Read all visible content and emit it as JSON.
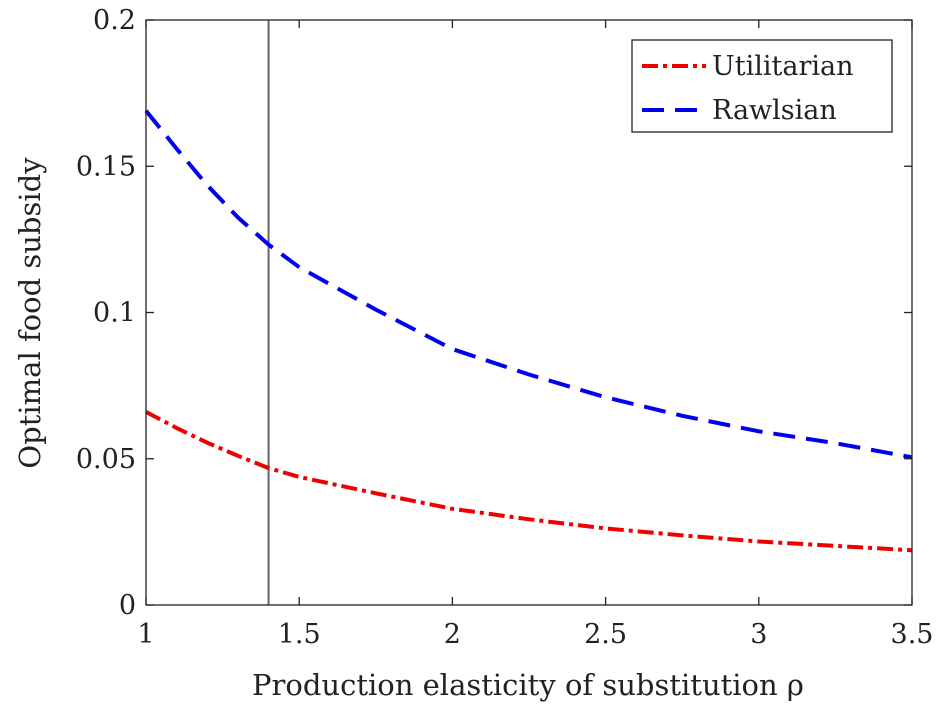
{
  "chart_data": {
    "type": "line",
    "title": "",
    "xlabel": "Production elasticity of substitution ρ",
    "ylabel": "Optimal food subsidy",
    "xlim": [
      1,
      3.5
    ],
    "ylim": [
      0,
      0.2
    ],
    "x_ticks": [
      "1",
      "1.5",
      "2",
      "2.5",
      "3",
      "3.5"
    ],
    "y_ticks": [
      "0",
      "0.05",
      "0.1",
      "0.15",
      "0.2"
    ],
    "x_tick_values": [
      1,
      1.5,
      2,
      2.5,
      3,
      3.5
    ],
    "y_tick_values": [
      0,
      0.05,
      0.1,
      0.15,
      0.2
    ],
    "grid": false,
    "legend_position": "top-right",
    "vertical_line": {
      "x": 1.4,
      "color": "#666666"
    },
    "series": [
      {
        "name": "Utilitarian",
        "color": "#ee0000",
        "style": "dash-dot",
        "x": [
          1,
          1.1,
          1.2,
          1.3,
          1.4,
          1.5,
          1.75,
          2,
          2.25,
          2.5,
          2.75,
          3,
          3.25,
          3.5
        ],
        "y": [
          0.066,
          0.0605,
          0.0555,
          0.051,
          0.0468,
          0.0438,
          0.0382,
          0.0329,
          0.0293,
          0.0262,
          0.0238,
          0.0217,
          0.0202,
          0.0187
        ]
      },
      {
        "name": "Rawlsian",
        "color": "#0000ee",
        "style": "dashed",
        "x": [
          1,
          1.1,
          1.2,
          1.3,
          1.4,
          1.5,
          1.75,
          2,
          2.25,
          2.5,
          2.75,
          3,
          3.25,
          3.5
        ],
        "y": [
          0.169,
          0.156,
          0.1435,
          0.1325,
          0.1232,
          0.1155,
          0.101,
          0.0875,
          0.0788,
          0.071,
          0.0647,
          0.0594,
          0.0553,
          0.0505
        ]
      }
    ]
  }
}
